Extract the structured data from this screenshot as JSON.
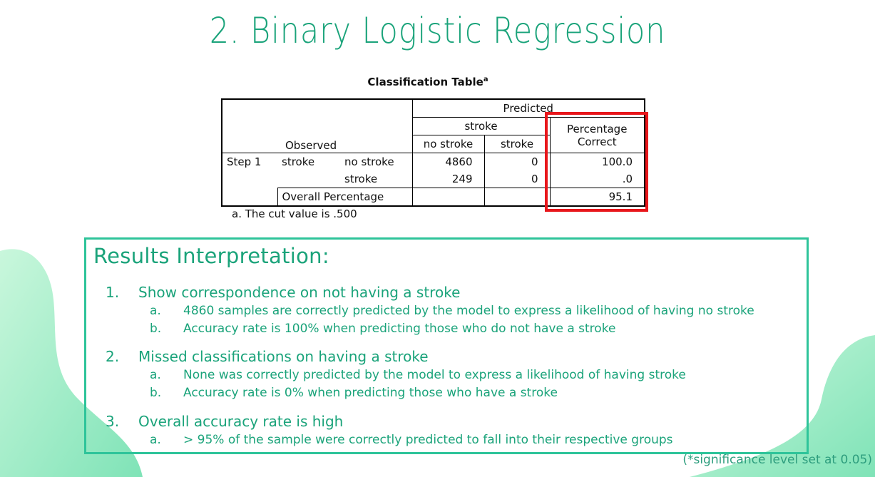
{
  "title": "2. Binary Logistic Regression",
  "table": {
    "caption": "Classification Table",
    "caption_sup": "a",
    "predicted": "Predicted",
    "dep_var": "stroke",
    "col_no_stroke": "no stroke",
    "col_stroke": "stroke",
    "col_pct_line1": "Percentage",
    "col_pct_line2": "Correct",
    "observed": "Observed",
    "step": "Step 1",
    "row_var": "stroke",
    "rows": [
      {
        "label": "no stroke",
        "no_stroke": "4860",
        "stroke": "0",
        "pct": "100.0"
      },
      {
        "label": "stroke",
        "no_stroke": "249",
        "stroke": "0",
        "pct": ".0"
      }
    ],
    "overall_label": "Overall Percentage",
    "overall_pct": "95.1",
    "footnote": "a. The cut value is .500"
  },
  "results": {
    "heading": "Results Interpretation:",
    "points": [
      {
        "num": "1.",
        "text": "Show correspondence on not having a stroke",
        "subs": [
          {
            "letter": "a.",
            "text": "4860 samples are correctly predicted by the model to express a likelihood of having no stroke"
          },
          {
            "letter": "b.",
            "text": "Accuracy rate is 100% when predicting those who do not have a stroke"
          }
        ]
      },
      {
        "num": "2.",
        "text": "Missed classifications on having a stroke",
        "subs": [
          {
            "letter": "a.",
            "text": "None was correctly predicted by the model to express a likelihood of having stroke"
          },
          {
            "letter": "b.",
            "text": "Accuracy rate is 0% when predicting those who have a stroke"
          }
        ]
      },
      {
        "num": "3.",
        "text": "Overall accuracy rate is high",
        "subs": [
          {
            "letter": "a.",
            "text": "> 95% of the sample were correctly predicted to fall into their respective groups"
          }
        ]
      }
    ]
  },
  "note": "(*significance level set at 0.05)",
  "colors": {
    "accent": "#1aa37a",
    "box_border": "#2ec49a",
    "highlight": "#e8161b",
    "blob": "#8be8bd"
  }
}
